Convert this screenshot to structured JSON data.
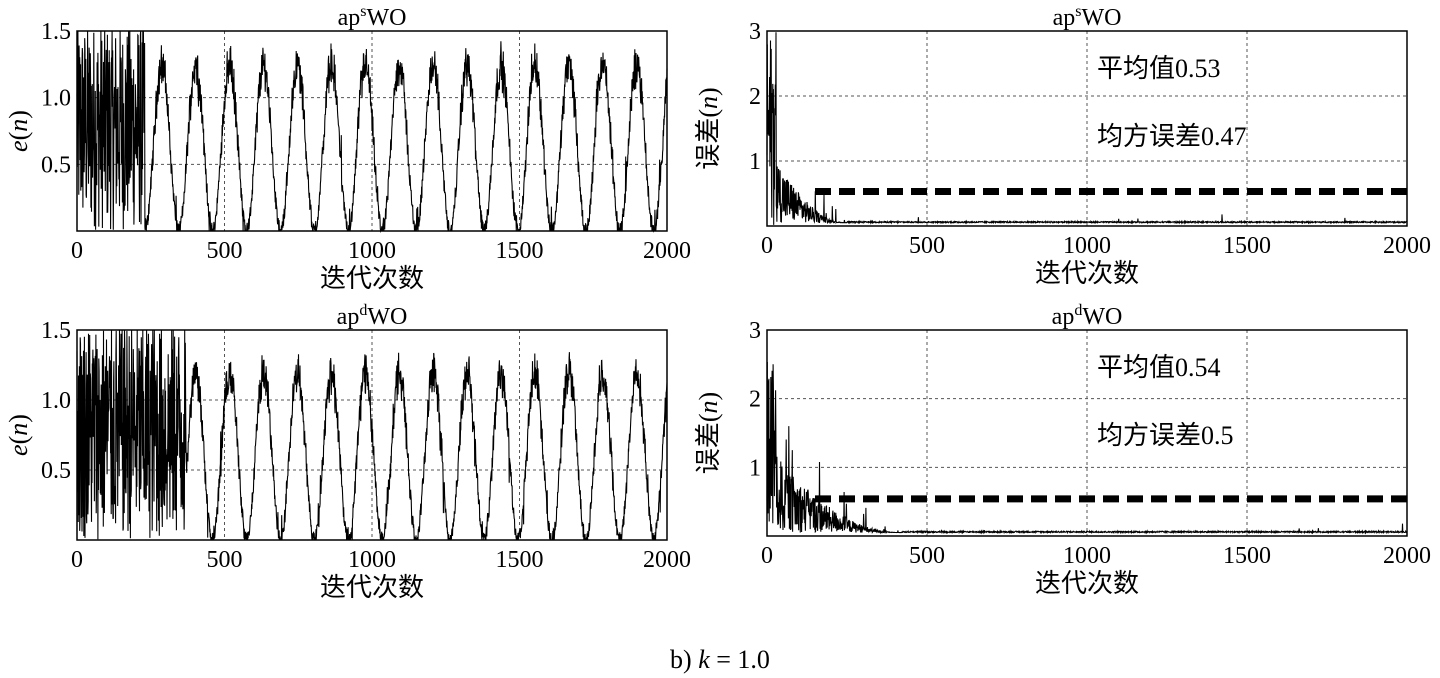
{
  "caption": {
    "label": "b)",
    "k_symbol": "k",
    "k_value": "= 1.0"
  },
  "chart_data": [
    {
      "id": "s-error",
      "type": "line",
      "title": {
        "base": "ap",
        "sup": "s",
        "rest": "WO"
      },
      "ylabel": {
        "sym": "e",
        "open": "(",
        "arg": "n",
        "close": ")"
      },
      "xlabel": "迭代次数",
      "xlim": [
        0,
        2000
      ],
      "ylim": [
        0,
        1.5
      ],
      "xticks": [
        0,
        500,
        1000,
        1500,
        2000
      ],
      "yticks": [
        0.5,
        1.0,
        1.5
      ],
      "ytick_labels": [
        "0.5",
        "1.0",
        "1.5"
      ],
      "grid": true,
      "series": [
        {
          "color": "#000000",
          "noisy_until": 230,
          "period": 115,
          "amplitude_mean": 1.25,
          "floor": 0.0
        }
      ]
    },
    {
      "id": "s-mse",
      "type": "line",
      "title": {
        "base": "ap",
        "sup": "s",
        "rest": "WO"
      },
      "ylabel": {
        "sym": "误差",
        "open": "(",
        "arg": "n",
        "close": ")"
      },
      "xlabel": "迭代次数",
      "xlim": [
        0,
        2000
      ],
      "ylim": [
        0,
        3
      ],
      "xticks": [
        0,
        500,
        1000,
        1500,
        2000
      ],
      "yticks": [
        1,
        2,
        3
      ],
      "ytick_labels": [
        "1",
        "2",
        "3"
      ],
      "grid": true,
      "annotations": [
        "平均值0.53",
        "均方误差0.47"
      ],
      "mean_line": 0.53,
      "series": [
        {
          "color": "#000000",
          "noisy_until": 250,
          "baseline": 0.05,
          "initial_peak": 3.0
        }
      ]
    },
    {
      "id": "d-error",
      "type": "line",
      "title": {
        "base": "ap",
        "sup": "d",
        "rest": "WO"
      },
      "ylabel": {
        "sym": "e",
        "open": "(",
        "arg": "n",
        "close": ")"
      },
      "xlabel": "迭代次数",
      "xlim": [
        0,
        2000
      ],
      "ylim": [
        0,
        1.5
      ],
      "xticks": [
        0,
        500,
        1000,
        1500,
        2000
      ],
      "yticks": [
        0.5,
        1.0,
        1.5
      ],
      "ytick_labels": [
        "0.5",
        "1.0",
        "1.5"
      ],
      "grid": true,
      "series": [
        {
          "color": "#000000",
          "noisy_until": 370,
          "period": 115,
          "amplitude_mean": 1.2,
          "floor": 0.0
        }
      ]
    },
    {
      "id": "d-mse",
      "type": "line",
      "title": {
        "base": "ap",
        "sup": "d",
        "rest": "WO"
      },
      "ylabel": {
        "sym": "误差",
        "open": "(",
        "arg": "n",
        "close": ")"
      },
      "xlabel": "迭代次数",
      "xlim": [
        0,
        2000
      ],
      "ylim": [
        0,
        3
      ],
      "xticks": [
        0,
        500,
        1000,
        1500,
        2000
      ],
      "yticks": [
        1,
        2,
        3
      ],
      "ytick_labels": [
        "1",
        "2",
        "3"
      ],
      "grid": true,
      "annotations": [
        "平均值0.54",
        "均方误差0.5"
      ],
      "mean_line": 0.54,
      "series": [
        {
          "color": "#000000",
          "noisy_until": 420,
          "baseline": 0.05,
          "initial_peak": 2.6
        }
      ]
    }
  ]
}
